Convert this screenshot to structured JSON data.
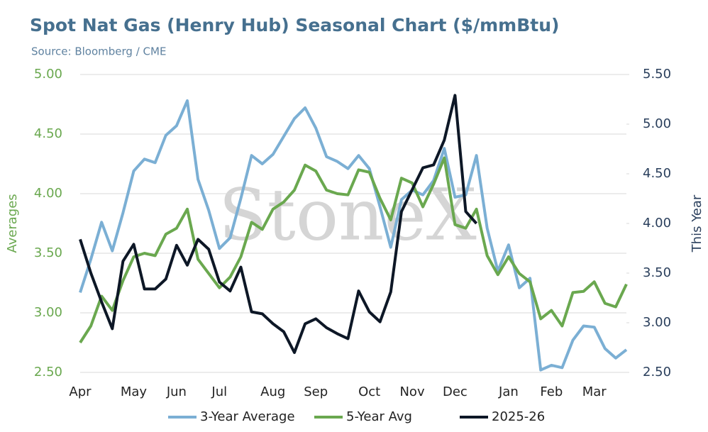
{
  "chart_data": {
    "type": "line",
    "title": "Spot Nat Gas (Henry Hub) Seasonal Chart ($/mmBtu)",
    "subtitle": "Source: Bloomberg / CME",
    "watermark": "StoneX",
    "ylabel": "Averages",
    "y2label": "This Year",
    "categories": [
      "Apr",
      null,
      null,
      null,
      null,
      "May",
      null,
      null,
      null,
      "Jun",
      null,
      null,
      null,
      "Jul",
      null,
      null,
      null,
      null,
      "Aug",
      null,
      null,
      null,
      "Sep",
      null,
      null,
      null,
      null,
      "Oct",
      null,
      null,
      null,
      "Nov",
      null,
      null,
      null,
      "Dec",
      null,
      null,
      null,
      null,
      "Jan",
      null,
      null,
      null,
      "Feb",
      null,
      null,
      null,
      "Mar",
      null,
      null,
      null
    ],
    "ylim": [
      2.5,
      5.0
    ],
    "yticks": [
      {
        "value": 2.5,
        "label": "2.50"
      },
      {
        "value": 3,
        "label": "3.00"
      },
      {
        "value": 3.5,
        "label": "3.50"
      },
      {
        "value": 4,
        "label": "4.00"
      },
      {
        "value": 4.5,
        "label": "4.50"
      },
      {
        "value": 5,
        "label": "5.00"
      }
    ],
    "y2lim": [
      2.5,
      5.5
    ],
    "y2ticks": [
      {
        "value": 2.5,
        "label": "2.50"
      },
      {
        "value": 3,
        "label": "3.00"
      },
      {
        "value": 3.5,
        "label": "3.50"
      },
      {
        "value": 4,
        "label": "4.00"
      },
      {
        "value": 4.5,
        "label": "4.50"
      },
      {
        "value": 5,
        "label": "5.00"
      },
      {
        "value": 5.5,
        "label": "5.50"
      }
    ],
    "grid": true,
    "legend": "bottom",
    "series": [
      {
        "name": "3-Year Average",
        "color": "#7bafd4",
        "axis": "y",
        "values": [
          3.17,
          3.45,
          3.76,
          3.52,
          3.84,
          4.19,
          4.29,
          4.26,
          4.49,
          4.57,
          4.78,
          4.12,
          3.86,
          3.54,
          3.63,
          3.96,
          4.32,
          4.25,
          4.33,
          4.48,
          4.63,
          4.72,
          4.55,
          4.31,
          4.27,
          4.21,
          4.32,
          4.21,
          3.89,
          3.55,
          3.95,
          4.03,
          3.99,
          4.11,
          4.38,
          3.97,
          3.99,
          4.32,
          3.71,
          3.35,
          3.57,
          3.21,
          3.29,
          2.52,
          2.56,
          2.54,
          2.77,
          2.89,
          2.88,
          2.7,
          2.62,
          2.69
        ]
      },
      {
        "name": "5-Year Avg",
        "color": "#6aa84f",
        "axis": "y",
        "values": [
          2.75,
          2.89,
          3.14,
          3.02,
          3.27,
          3.47,
          3.5,
          3.48,
          3.66,
          3.71,
          3.87,
          3.45,
          3.33,
          3.21,
          3.3,
          3.47,
          3.76,
          3.7,
          3.87,
          3.93,
          4.03,
          4.24,
          4.19,
          4.03,
          4.0,
          3.99,
          4.2,
          4.18,
          3.96,
          3.78,
          4.13,
          4.09,
          3.89,
          4.08,
          4.3,
          3.74,
          3.71,
          3.87,
          3.48,
          3.32,
          3.47,
          3.33,
          3.26,
          2.95,
          3.02,
          2.89,
          3.17,
          3.18,
          3.26,
          3.08,
          3.05,
          3.24
        ]
      },
      {
        "name": "2025-26",
        "color": "#0d1726",
        "axis": "y2",
        "values": [
          3.84,
          3.5,
          3.21,
          2.94,
          3.62,
          3.79,
          3.34,
          3.34,
          3.44,
          3.78,
          3.58,
          3.84,
          3.74,
          3.41,
          3.32,
          3.56,
          3.11,
          3.09,
          2.99,
          2.91,
          2.7,
          2.99,
          3.04,
          2.95,
          2.89,
          2.84,
          3.32,
          3.11,
          3.01,
          3.31,
          4.12,
          4.34,
          4.56,
          4.59,
          4.84,
          5.29,
          4.12,
          4.0,
          null,
          null,
          null,
          null,
          null,
          null,
          null,
          null,
          null,
          null,
          null,
          null,
          null,
          null
        ]
      }
    ]
  }
}
